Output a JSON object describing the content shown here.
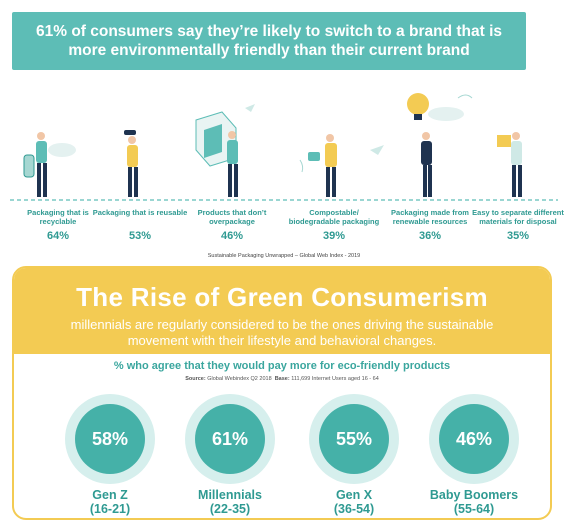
{
  "header": {
    "headline": "61% of consumers say they’re likely to switch to a brand that is more environmentally friendly than their current brand"
  },
  "packaging_stats": [
    {
      "label": "Packaging that is recyclable",
      "percent": "64%"
    },
    {
      "label": "Packaging that is reusable",
      "percent": "53%"
    },
    {
      "label": "Products that don’t overpackage",
      "percent": "46%"
    },
    {
      "label": "Compostable/ biodegradable packaging",
      "percent": "39%"
    },
    {
      "label": "Packaging made from renewable resources",
      "percent": "36%"
    },
    {
      "label": "Easy to separate different materials for disposal",
      "percent": "35%"
    }
  ],
  "top_source": "Sustainable Packaging Unwrapped – Global Web Index - 2019",
  "panel": {
    "title": "The Rise of Green Consumerism",
    "subtitle": "millennials are regularly considered to be the ones driving the sustainable movement with their lifestyle and behavioral changes.",
    "question": "% who agree that they would pay more for eco-friendly products",
    "source_label": "Source:",
    "source_text": "Global Webindex Q2 2018",
    "base_label": "Base:",
    "base_text": "111,699 Internet Users aged 16 - 64"
  },
  "generations": [
    {
      "name": "Gen Z",
      "range": "(16-21)",
      "percent": "58%"
    },
    {
      "name": "Millennials",
      "range": "(22-35)",
      "percent": "61%"
    },
    {
      "name": "Gen X",
      "range": "(36-54)",
      "percent": "55%"
    },
    {
      "name": "Baby Boomers",
      "range": "(55-64)",
      "percent": "46%"
    }
  ],
  "colors": {
    "teal": "#5dbdb6",
    "dark_teal": "#2f9a92",
    "yellow": "#f3cb53",
    "light_teal": "#d6efed",
    "navy": "#1f3350"
  }
}
